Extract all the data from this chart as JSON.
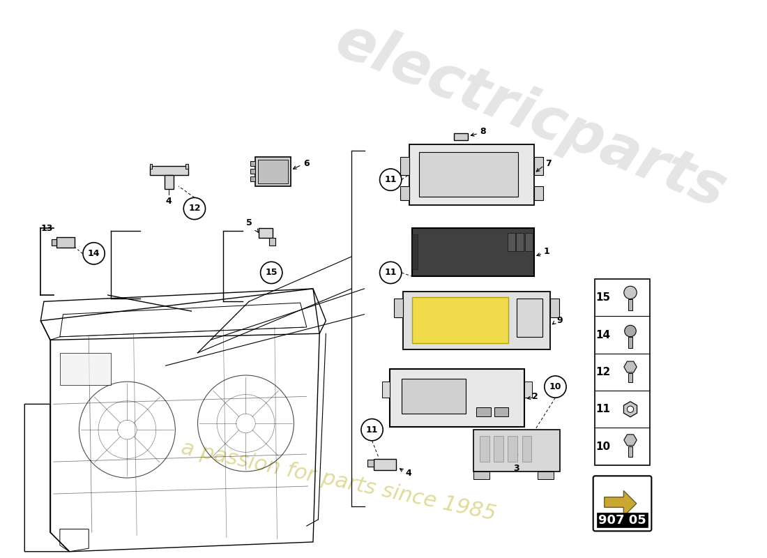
{
  "bg_color": "#ffffff",
  "page_code": "907 05",
  "watermark1": "electricparts",
  "watermark2": "a passion for parts since 1985",
  "fig_w": 11.0,
  "fig_h": 8.0,
  "dpi": 100
}
